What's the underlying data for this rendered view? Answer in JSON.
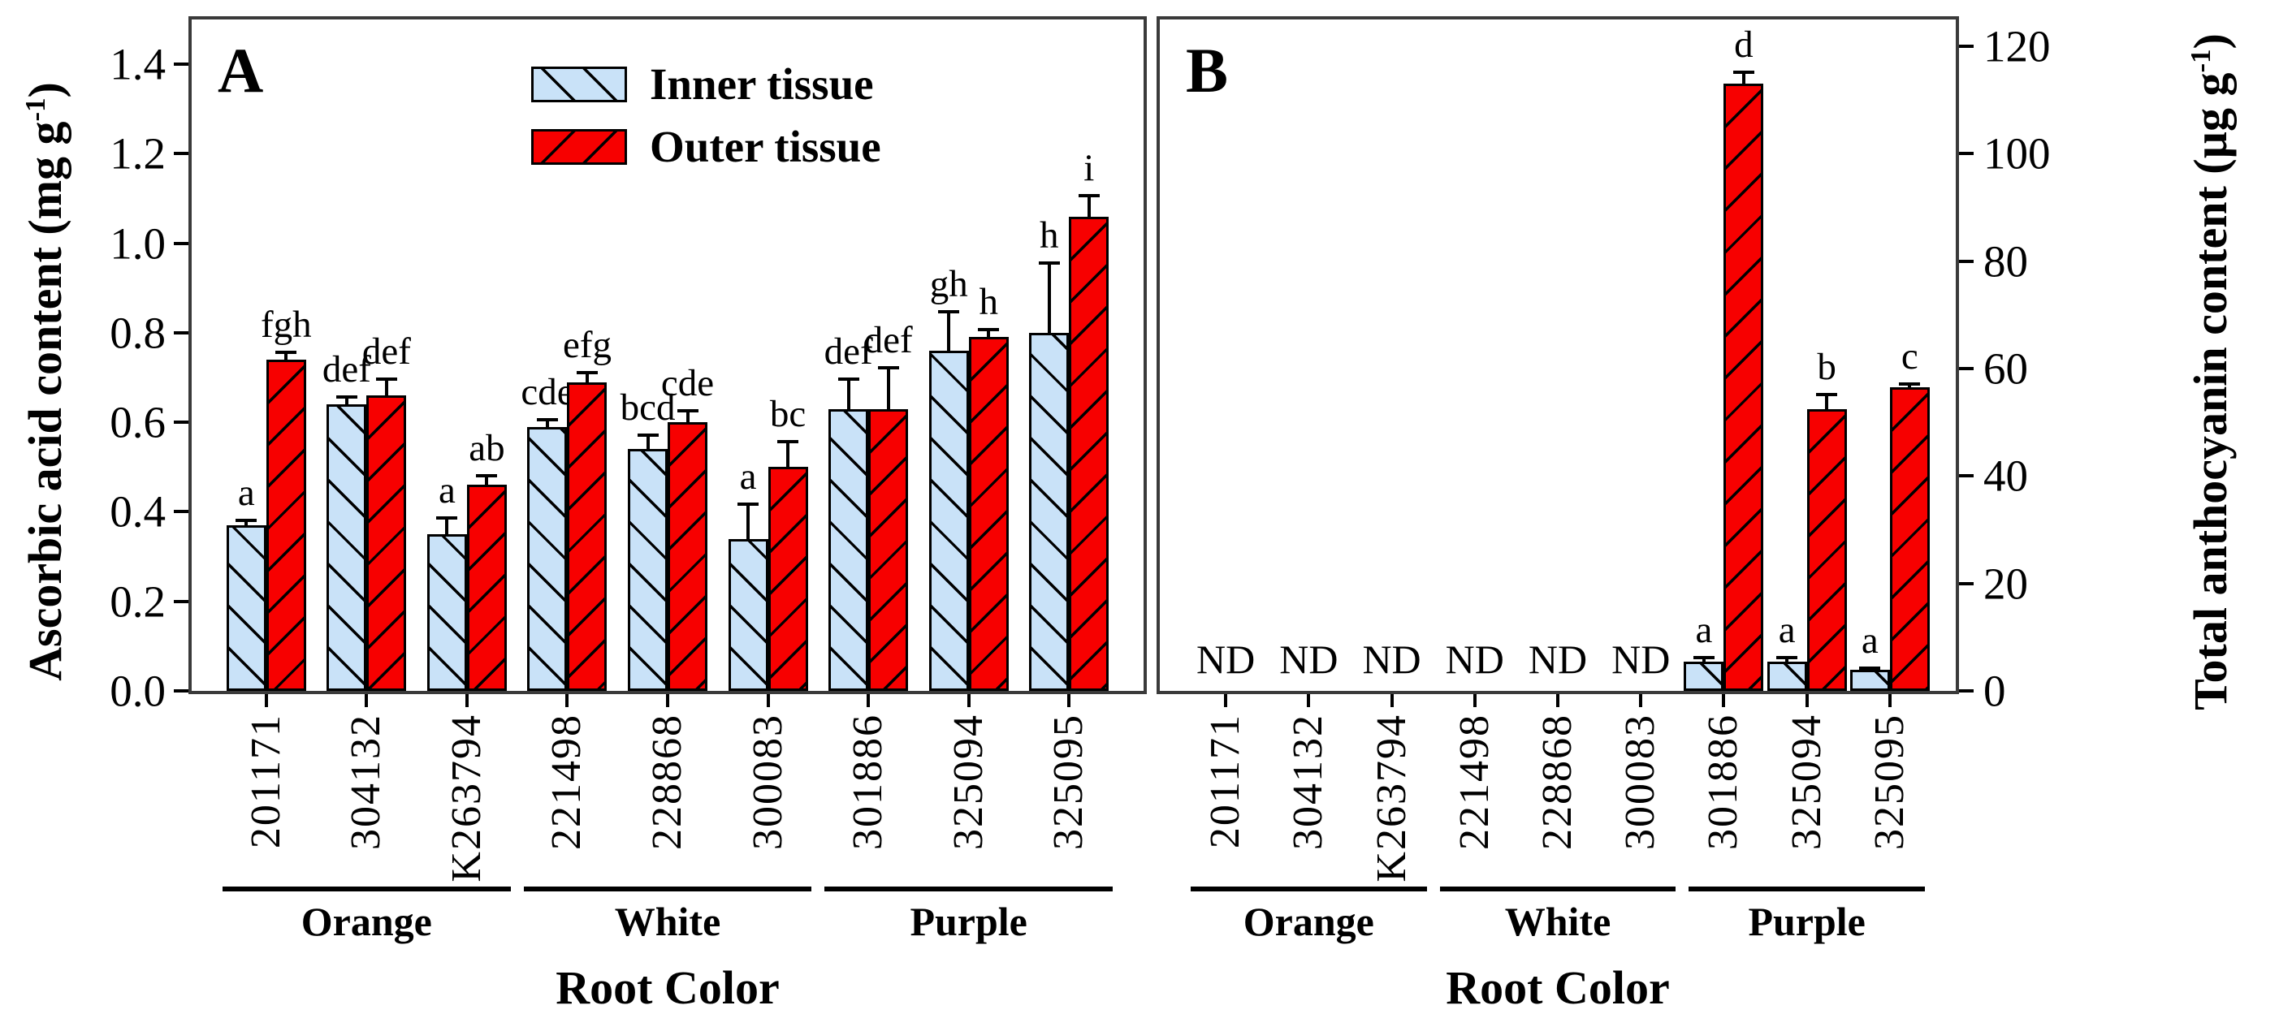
{
  "legend": {
    "items": [
      {
        "label": "Inner tissue",
        "fill": "#C9E2F8",
        "hatch": "\\"
      },
      {
        "label": "Outer tissue",
        "fill": "#F70000",
        "hatch": "/"
      }
    ]
  },
  "colors": {
    "inner_fill": "#C9E2F8",
    "outer_fill": "#F70000",
    "hatch_line": "#000000",
    "frame": "#3a3a3a"
  },
  "chart_data": [
    {
      "type": "bar",
      "panel_label": "A",
      "axis_side": "left",
      "xlabel": "Root Color",
      "ylabel_full": "Ascorbic acid content (mg g-1)",
      "ylabel_prefix": "Ascorbic acid content (mg g",
      "ylabel_sup": "-1",
      "ylabel_suffix": ")",
      "ylim": [
        0,
        1.5
      ],
      "yticks": [
        {
          "v": 0.0,
          "label": "0.0"
        },
        {
          "v": 0.2,
          "label": "0.2"
        },
        {
          "v": 0.4,
          "label": "0.4"
        },
        {
          "v": 0.6,
          "label": "0.6"
        },
        {
          "v": 0.8,
          "label": "0.8"
        },
        {
          "v": 1.0,
          "label": "1.0"
        },
        {
          "v": 1.2,
          "label": "1.2"
        },
        {
          "v": 1.4,
          "label": "1.4"
        }
      ],
      "categories": [
        "201171",
        "304132",
        "K263794",
        "221498",
        "228868",
        "300083",
        "301886",
        "325094",
        "325095"
      ],
      "groups": [
        {
          "label": "Orange",
          "from": 0,
          "to": 2
        },
        {
          "label": "White",
          "from": 3,
          "to": 5
        },
        {
          "label": "Purple",
          "from": 6,
          "to": 8
        }
      ],
      "nd": [
        false,
        false,
        false,
        false,
        false,
        false,
        false,
        false,
        false
      ],
      "nd_label": "ND",
      "series": [
        {
          "name": "Inner tissue",
          "fill": "#C9E2F8",
          "hatch": "\\",
          "values": [
            0.37,
            0.64,
            0.35,
            0.59,
            0.54,
            0.34,
            0.63,
            0.76,
            0.8
          ],
          "errors": [
            0.015,
            0.02,
            0.04,
            0.02,
            0.035,
            0.08,
            0.07,
            0.09,
            0.16
          ],
          "letters": [
            "a",
            "def",
            "a",
            "cde",
            "bcd",
            "a",
            "def",
            "gh",
            "h"
          ]
        },
        {
          "name": "Outer tissue",
          "fill": "#F70000",
          "hatch": "/",
          "values": [
            0.74,
            0.66,
            0.46,
            0.69,
            0.6,
            0.5,
            0.63,
            0.79,
            1.06
          ],
          "errors": [
            0.02,
            0.04,
            0.025,
            0.025,
            0.03,
            0.06,
            0.095,
            0.02,
            0.05
          ],
          "letters": [
            "fgh",
            "def",
            "ab",
            "efg",
            "cde",
            "bc",
            "def",
            "h",
            "i"
          ]
        }
      ]
    },
    {
      "type": "bar",
      "panel_label": "B",
      "axis_side": "right",
      "xlabel": "Root Color",
      "ylabel_full": "Total anthocyanin content (µg g-1)",
      "ylabel_prefix": "Total anthocyanin content (µg g",
      "ylabel_sup": "-1",
      "ylabel_suffix": ")",
      "ylim": [
        0,
        125
      ],
      "yticks": [
        {
          "v": 0,
          "label": "0"
        },
        {
          "v": 20,
          "label": "20"
        },
        {
          "v": 40,
          "label": "40"
        },
        {
          "v": 60,
          "label": "60"
        },
        {
          "v": 80,
          "label": "80"
        },
        {
          "v": 100,
          "label": "100"
        },
        {
          "v": 120,
          "label": "120"
        }
      ],
      "categories": [
        "201171",
        "304132",
        "K263794",
        "221498",
        "228868",
        "300083",
        "301886",
        "325094",
        "325095"
      ],
      "groups": [
        {
          "label": "Orange",
          "from": 0,
          "to": 2
        },
        {
          "label": "White",
          "from": 3,
          "to": 5
        },
        {
          "label": "Purple",
          "from": 6,
          "to": 8
        }
      ],
      "nd": [
        true,
        true,
        true,
        true,
        true,
        true,
        false,
        false,
        false
      ],
      "nd_label": "ND",
      "series": [
        {
          "name": "Inner tissue",
          "fill": "#C9E2F8",
          "hatch": "\\",
          "values": [
            null,
            null,
            null,
            null,
            null,
            null,
            5.5,
            5.5,
            4
          ],
          "errors": [
            null,
            null,
            null,
            null,
            null,
            null,
            1,
            1,
            0.5
          ],
          "letters": [
            null,
            null,
            null,
            null,
            null,
            null,
            "a",
            "a",
            "a"
          ]
        },
        {
          "name": "Outer tissue",
          "fill": "#F70000",
          "hatch": "/",
          "values": [
            null,
            null,
            null,
            null,
            null,
            null,
            113,
            52.5,
            56.5
          ],
          "errors": [
            null,
            null,
            null,
            null,
            null,
            null,
            2.5,
            3,
            1
          ],
          "letters": [
            null,
            null,
            null,
            null,
            null,
            null,
            "d",
            "b",
            "c"
          ]
        }
      ]
    }
  ]
}
